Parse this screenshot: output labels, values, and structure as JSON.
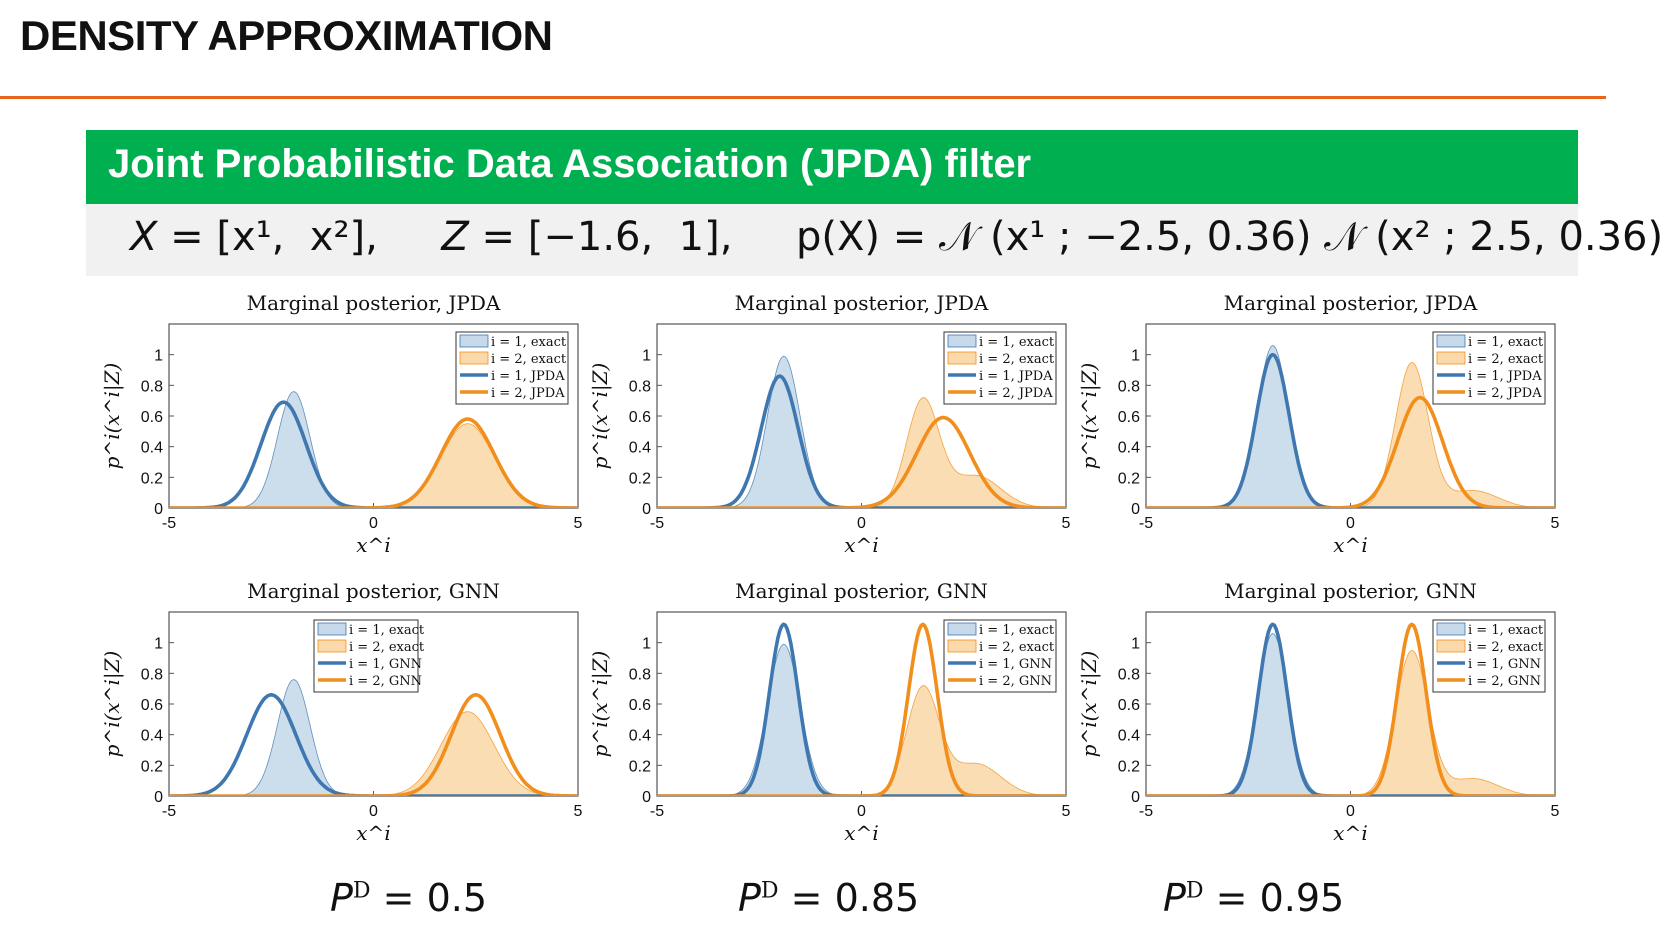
{
  "slide": {
    "title": "DENSITY APPROXIMATION",
    "rule_color": "#e8641b"
  },
  "banner": {
    "title": "Joint Probabilistic Data Association (JPDA) filter",
    "color": "#00b050"
  },
  "formula": {
    "X_var": "X",
    "X_rhs": " = [x¹,  x²],",
    "Z_var": "Z",
    "Z_rhs": " = [−1.6,  1],",
    "p_lhs": "p(X) = 𝒩 (x¹ ; −2.5, 0.36) 𝒩 (x² ; 2.5, 0.36)"
  },
  "colors": {
    "blue_line": "#3f78b0",
    "blue_fill": "#c6d9ea",
    "orange_line": "#f28e1c",
    "orange_fill": "#fbd9ab"
  },
  "columns": [
    {
      "pd_symbol": "P",
      "pd_superscript": "D",
      "pd_value": "= 0.5"
    },
    {
      "pd_symbol": "P",
      "pd_superscript": "D",
      "pd_value": "= 0.85"
    },
    {
      "pd_symbol": "P",
      "pd_superscript": "D",
      "pd_value": "= 0.95"
    }
  ],
  "chart_data": [
    {
      "type": "area",
      "title": "Marginal posterior, JPDA",
      "xlabel": "x^i",
      "ylabel": "p^i(x^i|Z)",
      "xlim": [
        -5,
        5
      ],
      "ylim": [
        0,
        1.2
      ],
      "xticks": [
        -5,
        0,
        5
      ],
      "yticks": [
        0,
        0.2,
        0.4,
        0.6,
        0.8,
        1
      ],
      "legend": "top-right",
      "series": [
        {
          "name": "i = 1, exact",
          "kind": "area",
          "comps": [
            [
              1.0,
              -1.95,
              0.4
            ]
          ],
          "peak": 0.76
        },
        {
          "name": "i = 2, exact",
          "kind": "area",
          "comps": [
            [
              1.0,
              2.3,
              0.65
            ]
          ],
          "peak": 0.55
        },
        {
          "name": "i = 1, JPDA",
          "kind": "line",
          "comps": [
            [
              1.0,
              -2.2,
              0.55
            ]
          ],
          "peak": 0.69
        },
        {
          "name": "i = 2, JPDA",
          "kind": "line",
          "comps": [
            [
              1.0,
              2.3,
              0.65
            ]
          ],
          "peak": 0.58
        }
      ]
    },
    {
      "type": "area",
      "title": "Marginal posterior, JPDA",
      "xlabel": "x^i",
      "ylabel": "p^i(x^i|Z)",
      "xlim": [
        -5,
        5
      ],
      "ylim": [
        0,
        1.2
      ],
      "xticks": [
        -5,
        0,
        5
      ],
      "yticks": [
        0,
        0.2,
        0.4,
        0.6,
        0.8,
        1
      ],
      "legend": "top-right",
      "series": [
        {
          "name": "i = 1, exact",
          "kind": "area",
          "comps": [
            [
              1.0,
              -1.9,
              0.4
            ]
          ],
          "peak": 0.99
        },
        {
          "name": "i = 2, exact",
          "kind": "area",
          "comps": [
            [
              1.0,
              1.5,
              0.4
            ],
            [
              0.3,
              2.8,
              0.6
            ]
          ],
          "peak": 0.72
        },
        {
          "name": "i = 1, JPDA",
          "kind": "line",
          "comps": [
            [
              1.0,
              -2.0,
              0.45
            ]
          ],
          "peak": 0.86
        },
        {
          "name": "i = 2, JPDA",
          "kind": "line",
          "comps": [
            [
              1.0,
              2.0,
              0.65
            ]
          ],
          "peak": 0.59
        }
      ]
    },
    {
      "type": "area",
      "title": "Marginal posterior, JPDA",
      "xlabel": "x^i",
      "ylabel": "p^i(x^i|Z)",
      "xlim": [
        -5,
        5
      ],
      "ylim": [
        0,
        1.2
      ],
      "xticks": [
        -5,
        0,
        5
      ],
      "yticks": [
        0,
        0.2,
        0.4,
        0.6,
        0.8,
        1
      ],
      "legend": "top-right",
      "series": [
        {
          "name": "i = 1, exact",
          "kind": "area",
          "comps": [
            [
              1.0,
              -1.9,
              0.38
            ]
          ],
          "peak": 1.06
        },
        {
          "name": "i = 2, exact",
          "kind": "area",
          "comps": [
            [
              1.0,
              1.5,
              0.4
            ],
            [
              0.12,
              3.0,
              0.6
            ]
          ],
          "peak": 0.95
        },
        {
          "name": "i = 1, JPDA",
          "kind": "line",
          "comps": [
            [
              1.0,
              -1.9,
              0.4
            ]
          ],
          "peak": 1.0
        },
        {
          "name": "i = 2, JPDA",
          "kind": "line",
          "comps": [
            [
              1.0,
              1.7,
              0.55
            ]
          ],
          "peak": 0.72
        }
      ]
    },
    {
      "type": "area",
      "title": "Marginal posterior, GNN",
      "xlabel": "x^i",
      "ylabel": "p^i(x^i|Z)",
      "xlim": [
        -5,
        5
      ],
      "ylim": [
        0,
        1.2
      ],
      "xticks": [
        -5,
        0,
        5
      ],
      "yticks": [
        0,
        0.2,
        0.4,
        0.6,
        0.8,
        1
      ],
      "legend": "top-right",
      "series": [
        {
          "name": "i = 1, exact",
          "kind": "area",
          "comps": [
            [
              1.0,
              -1.95,
              0.4
            ]
          ],
          "peak": 0.76
        },
        {
          "name": "i = 2, exact",
          "kind": "area",
          "comps": [
            [
              1.0,
              2.3,
              0.65
            ]
          ],
          "peak": 0.55
        },
        {
          "name": "i = 1, GNN",
          "kind": "line",
          "comps": [
            [
              1.0,
              -2.5,
              0.6
            ]
          ],
          "peak": 0.66
        },
        {
          "name": "i = 2, GNN",
          "kind": "line",
          "comps": [
            [
              1.0,
              2.5,
              0.6
            ]
          ],
          "peak": 0.66
        }
      ]
    },
    {
      "type": "area",
      "title": "Marginal posterior, GNN",
      "xlabel": "x^i",
      "ylabel": "p^i(x^i|Z)",
      "xlim": [
        -5,
        5
      ],
      "ylim": [
        0,
        1.2
      ],
      "xticks": [
        -5,
        0,
        5
      ],
      "yticks": [
        0,
        0.2,
        0.4,
        0.6,
        0.8,
        1
      ],
      "legend": "top-right",
      "series": [
        {
          "name": "i = 1, exact",
          "kind": "area",
          "comps": [
            [
              1.0,
              -1.9,
              0.4
            ]
          ],
          "peak": 0.99
        },
        {
          "name": "i = 2, exact",
          "kind": "area",
          "comps": [
            [
              1.0,
              1.5,
              0.4
            ],
            [
              0.3,
              2.8,
              0.6
            ]
          ],
          "peak": 0.72
        },
        {
          "name": "i = 1, GNN",
          "kind": "line",
          "comps": [
            [
              1.0,
              -1.9,
              0.35
            ]
          ],
          "peak": 1.12
        },
        {
          "name": "i = 2, GNN",
          "kind": "line",
          "comps": [
            [
              1.0,
              1.5,
              0.35
            ]
          ],
          "peak": 1.12
        }
      ]
    },
    {
      "type": "area",
      "title": "Marginal posterior, GNN",
      "xlabel": "x^i",
      "ylabel": "p^i(x^i|Z)",
      "xlim": [
        -5,
        5
      ],
      "ylim": [
        0,
        1.2
      ],
      "xticks": [
        -5,
        0,
        5
      ],
      "yticks": [
        0,
        0.2,
        0.4,
        0.6,
        0.8,
        1
      ],
      "legend": "top-right",
      "series": [
        {
          "name": "i = 1, exact",
          "kind": "area",
          "comps": [
            [
              1.0,
              -1.9,
              0.38
            ]
          ],
          "peak": 1.06
        },
        {
          "name": "i = 2, exact",
          "kind": "area",
          "comps": [
            [
              1.0,
              1.5,
              0.4
            ],
            [
              0.12,
              3.0,
              0.6
            ]
          ],
          "peak": 0.95
        },
        {
          "name": "i = 1, GNN",
          "kind": "line",
          "comps": [
            [
              1.0,
              -1.9,
              0.35
            ]
          ],
          "peak": 1.12
        },
        {
          "name": "i = 2, GNN",
          "kind": "line",
          "comps": [
            [
              1.0,
              1.5,
              0.35
            ]
          ],
          "peak": 1.12
        }
      ]
    }
  ]
}
